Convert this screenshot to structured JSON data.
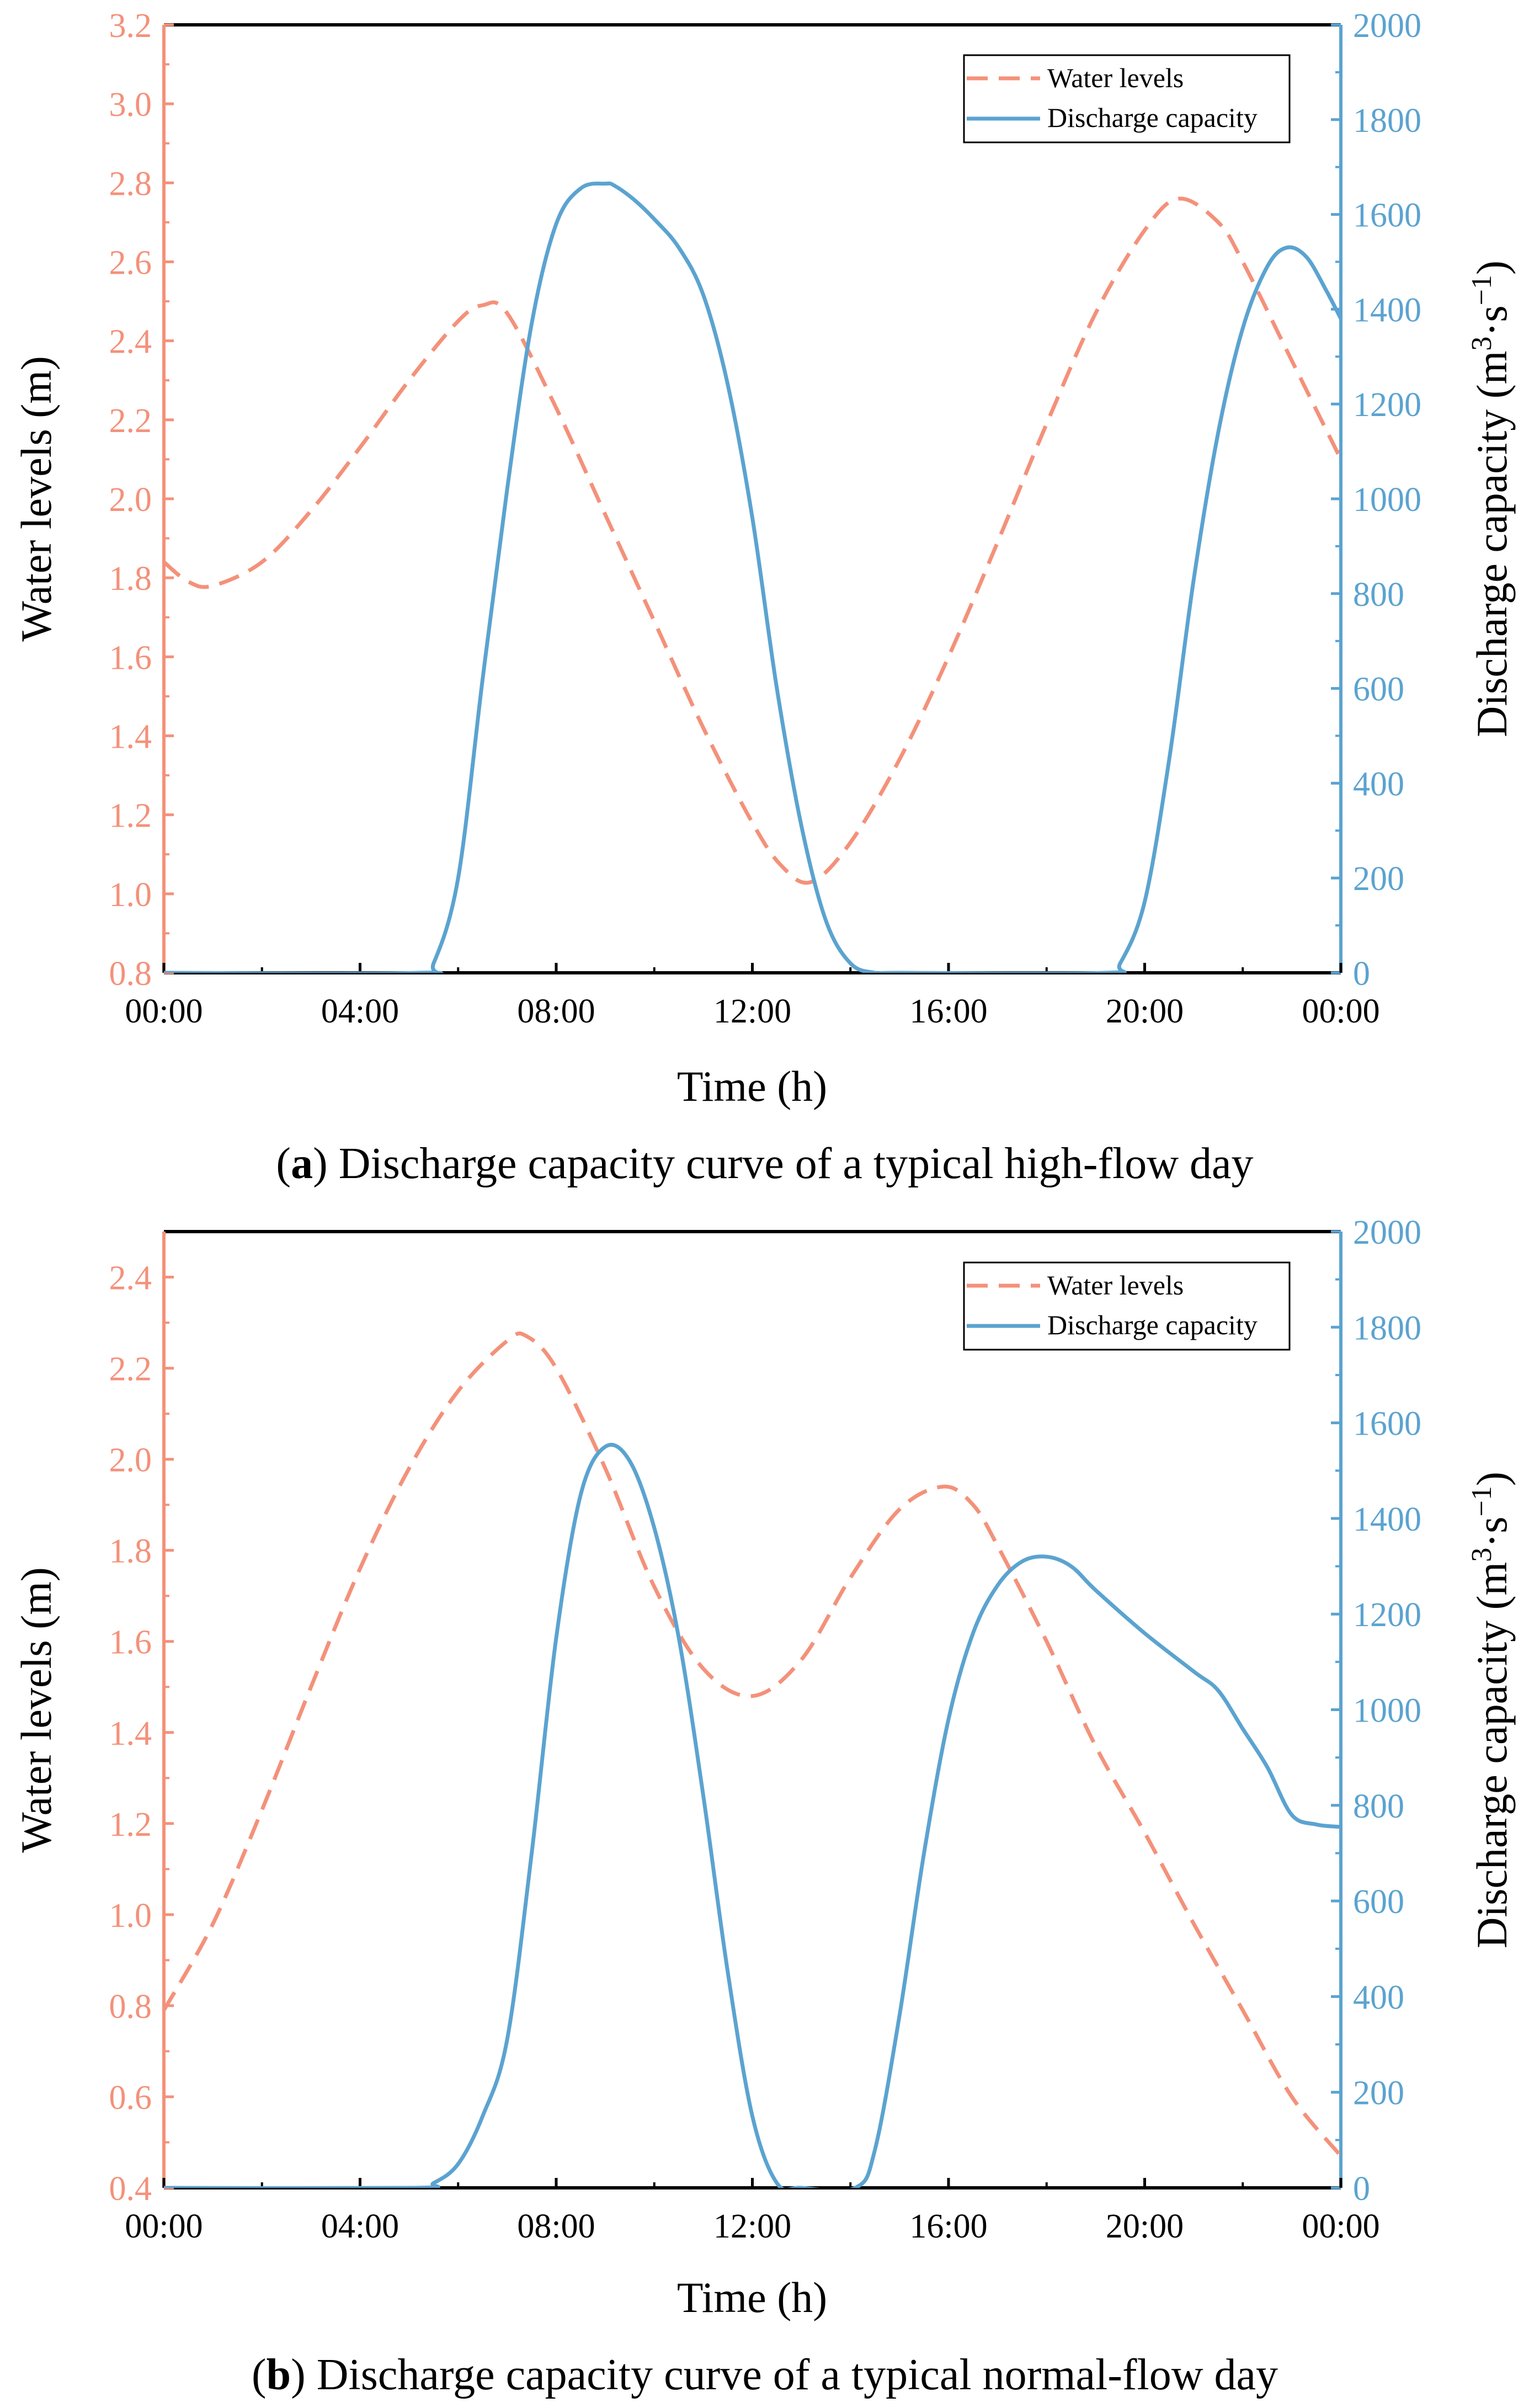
{
  "chart_data": [
    {
      "type": "line",
      "panel": "a",
      "caption_letter": "a",
      "caption_text": ") Discharge capacity curve of a typical high-flow day",
      "xlabel": "Time (h)",
      "ylabel_left": "Water levels (m)",
      "ylabel_right": "Discharge capacity (m³·s⁻¹)",
      "ylabel_right_base": "Discharge capacity (m",
      "ylabel_right_mid": "·s",
      "ylabel_right_sup1": "3",
      "ylabel_right_sup2": "−1",
      "ylabel_right_close": ")",
      "xlim": [
        0,
        24
      ],
      "x_ticks": [
        0,
        4,
        8,
        12,
        16,
        20,
        24
      ],
      "x_tick_labels": [
        "00:00",
        "04:00",
        "08:00",
        "12:00",
        "16:00",
        "20:00",
        "00:00"
      ],
      "ylim_left": [
        0.8,
        3.2
      ],
      "y_left_ticks": [
        0.8,
        1.0,
        1.2,
        1.4,
        1.6,
        1.8,
        2.0,
        2.2,
        2.4,
        2.6,
        2.8,
        3.0,
        3.2
      ],
      "y_left_tick_labels": [
        "0.8",
        "1.0",
        "1.2",
        "1.4",
        "1.6",
        "1.8",
        "2.0",
        "2.2",
        "2.4",
        "2.6",
        "2.8",
        "3.0",
        "3.2"
      ],
      "ylim_right": [
        0,
        2000
      ],
      "y_right_ticks": [
        0,
        200,
        400,
        600,
        800,
        1000,
        1200,
        1400,
        1600,
        1800,
        2000
      ],
      "y_right_tick_labels": [
        "0",
        "200",
        "400",
        "600",
        "800",
        "1000",
        "1200",
        "1400",
        "1600",
        "1800",
        "2000"
      ],
      "legend_position": "top-right",
      "series": [
        {
          "name": "Water levels",
          "axis": "left",
          "style": "dashed",
          "color": "#F4917A",
          "x": [
            0,
            0.5,
            1,
            2,
            3,
            4,
            5,
            6,
            6.5,
            7,
            8,
            9,
            10,
            11,
            12,
            12.6,
            13.2,
            14,
            15,
            16,
            17,
            18,
            19,
            20,
            20.7,
            21.5,
            22,
            23,
            24
          ],
          "y": [
            1.84,
            1.79,
            1.78,
            1.84,
            1.97,
            2.13,
            2.3,
            2.45,
            2.49,
            2.47,
            2.23,
            1.96,
            1.69,
            1.42,
            1.18,
            1.07,
            1.03,
            1.13,
            1.34,
            1.6,
            1.89,
            2.19,
            2.47,
            2.68,
            2.76,
            2.7,
            2.6,
            2.35,
            2.1
          ]
        },
        {
          "name": "Discharge capacity",
          "axis": "right",
          "style": "solid",
          "color": "#5BA3D0",
          "x": [
            0,
            5.2,
            5.5,
            6,
            6.5,
            7,
            7.5,
            8,
            8.5,
            9,
            9.2,
            9.6,
            10,
            10.5,
            11,
            11.5,
            12,
            12.5,
            13,
            13.5,
            14,
            14.5,
            15,
            19.2,
            19.5,
            20,
            20.5,
            21,
            21.5,
            22,
            22.5,
            22.9,
            23.3,
            23.7,
            24
          ],
          "y": [
            0,
            0,
            20,
            200,
            620,
            1020,
            1370,
            1580,
            1655,
            1665,
            1660,
            1630,
            1590,
            1530,
            1430,
            1240,
            960,
            600,
            310,
            110,
            20,
            0,
            0,
            0,
            20,
            150,
            450,
            830,
            1140,
            1360,
            1490,
            1530,
            1510,
            1440,
            1380
          ]
        }
      ]
    },
    {
      "type": "line",
      "panel": "b",
      "caption_letter": "b",
      "caption_text": ") Discharge capacity curve of a typical normal-flow day",
      "xlabel": "Time (h)",
      "ylabel_left": "Water levels (m)",
      "ylabel_right": "Discharge capacity (m³·s⁻¹)",
      "ylabel_right_base": "Discharge capacity (m",
      "ylabel_right_mid": "·s",
      "ylabel_right_sup1": "3",
      "ylabel_right_sup2": "−1",
      "ylabel_right_close": ")",
      "xlim": [
        0,
        24
      ],
      "x_ticks": [
        0,
        4,
        8,
        12,
        16,
        20,
        24
      ],
      "x_tick_labels": [
        "00:00",
        "04:00",
        "08:00",
        "12:00",
        "16:00",
        "20:00",
        "00:00"
      ],
      "ylim_left": [
        0.4,
        2.5
      ],
      "y_left_ticks": [
        0.4,
        0.6,
        0.8,
        1.0,
        1.2,
        1.4,
        1.6,
        1.8,
        2.0,
        2.2,
        2.4
      ],
      "y_left_tick_labels": [
        "0.4",
        "0.6",
        "0.8",
        "1.0",
        "1.2",
        "1.4",
        "1.6",
        "1.8",
        "2.0",
        "2.2",
        "2.4"
      ],
      "ylim_right": [
        0,
        2000
      ],
      "y_right_ticks": [
        0,
        200,
        400,
        600,
        800,
        1000,
        1200,
        1400,
        1600,
        1800,
        2000
      ],
      "y_right_tick_labels": [
        "0",
        "200",
        "400",
        "600",
        "800",
        "1000",
        "1200",
        "1400",
        "1600",
        "1800",
        "2000"
      ],
      "legend_position": "top-right",
      "series": [
        {
          "name": "Water levels",
          "axis": "left",
          "style": "dashed",
          "color": "#F4917A",
          "x": [
            0,
            1,
            2,
            3,
            4,
            5,
            6,
            7,
            7.4,
            8,
            9,
            10,
            11,
            12,
            13,
            14,
            15,
            15.9,
            16.5,
            17,
            18,
            19,
            20,
            21,
            22,
            23,
            24
          ],
          "y": [
            0.79,
            0.98,
            1.23,
            1.5,
            1.76,
            1.98,
            2.15,
            2.26,
            2.27,
            2.2,
            1.98,
            1.72,
            1.54,
            1.48,
            1.56,
            1.74,
            1.89,
            1.94,
            1.9,
            1.81,
            1.6,
            1.37,
            1.18,
            0.98,
            0.79,
            0.6,
            0.47
          ]
        },
        {
          "name": "Discharge capacity",
          "axis": "right",
          "style": "solid",
          "color": "#5BA3D0",
          "x": [
            0,
            5.1,
            5.5,
            6,
            6.5,
            7,
            7.5,
            8,
            8.5,
            9,
            9.5,
            10,
            10.5,
            11,
            11.5,
            12,
            12.5,
            13,
            14.1,
            14.5,
            15,
            15.5,
            16,
            16.5,
            17,
            17.5,
            18,
            18.5,
            19,
            20,
            21,
            21.5,
            22,
            22.5,
            23,
            23.5,
            24
          ],
          "y": [
            0,
            0,
            10,
            50,
            150,
            310,
            700,
            1150,
            1450,
            1550,
            1520,
            1380,
            1150,
            820,
            450,
            150,
            10,
            0,
            0,
            80,
            360,
            700,
            980,
            1160,
            1260,
            1310,
            1320,
            1300,
            1250,
            1160,
            1080,
            1040,
            960,
            880,
            780,
            760,
            755
          ]
        }
      ]
    }
  ]
}
